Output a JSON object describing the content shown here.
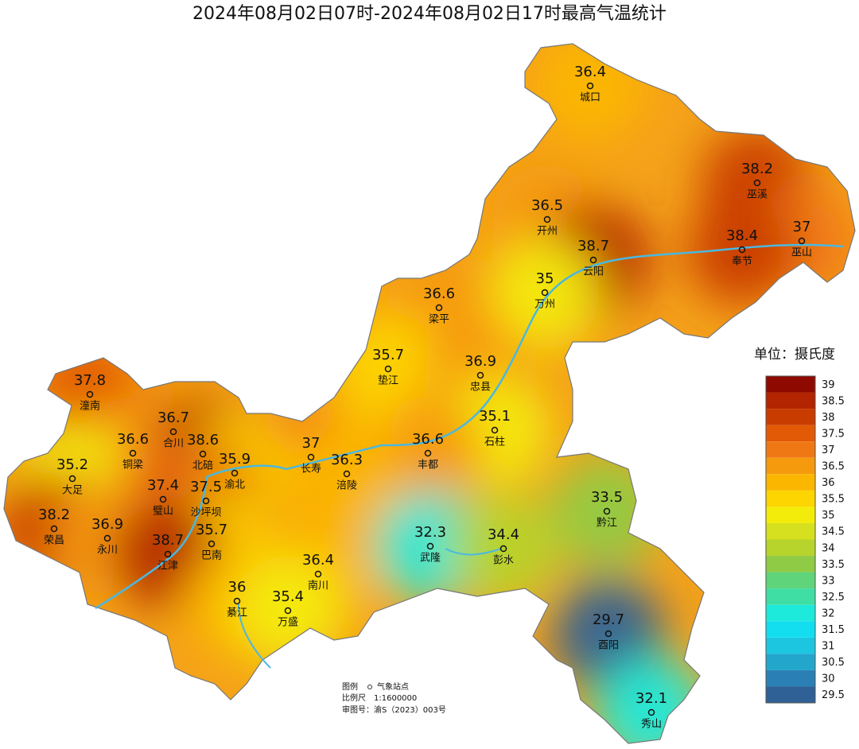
{
  "title": "2024年08月02日07时-2024年08月02日17时最高气温统计",
  "stations": [
    {
      "name": "城口",
      "value": 36.4
    },
    {
      "name": "巫溪",
      "value": 38.2
    },
    {
      "name": "开州",
      "value": 36.5
    },
    {
      "name": "巫山",
      "value": 37
    },
    {
      "name": "奉节",
      "value": 38.4
    },
    {
      "name": "云阳",
      "value": 38.7
    },
    {
      "name": "万州",
      "value": 35
    },
    {
      "name": "梁平",
      "value": 36.6
    },
    {
      "name": "垫江",
      "value": 35.7
    },
    {
      "name": "忠县",
      "value": 36.9
    },
    {
      "name": "潼南",
      "value": 37.8
    },
    {
      "name": "石柱",
      "value": 35.1
    },
    {
      "name": "合川",
      "value": 36.7
    },
    {
      "name": "铜梁",
      "value": 36.6
    },
    {
      "name": "北碚",
      "value": 38.6
    },
    {
      "name": "丰都",
      "value": 36.6
    },
    {
      "name": "长寿",
      "value": 37
    },
    {
      "name": "渝北",
      "value": 35.9
    },
    {
      "name": "涪陵",
      "value": 36.3
    },
    {
      "name": "大足",
      "value": 35.2
    },
    {
      "name": "璧山",
      "value": 37.4
    },
    {
      "name": "沙坪坝",
      "value": 37.5
    },
    {
      "name": "黔江",
      "value": 33.5
    },
    {
      "name": "荣昌",
      "value": 38.2
    },
    {
      "name": "永川",
      "value": 36.9
    },
    {
      "name": "武隆",
      "value": 32.3
    },
    {
      "name": "彭水",
      "value": 34.4
    },
    {
      "name": "巴南",
      "value": 35.7
    },
    {
      "name": "江津",
      "value": 38.7
    },
    {
      "name": "南川",
      "value": 36.4
    },
    {
      "name": "綦江",
      "value": 36
    },
    {
      "name": "万盛",
      "value": 35.4
    },
    {
      "name": "酉阳",
      "value": 29.7
    },
    {
      "name": "秀山",
      "value": 32.1
    }
  ],
  "legend": {
    "unit": "单位：摄氏度",
    "items": [
      {
        "value": 39,
        "color": "#8e0a00"
      },
      {
        "value": 38.5,
        "color": "#b32400"
      },
      {
        "value": 38,
        "color": "#c93c00"
      },
      {
        "value": 37.5,
        "color": "#e25a06"
      },
      {
        "value": 37,
        "color": "#f07814"
      },
      {
        "value": 36.5,
        "color": "#f59a0c"
      },
      {
        "value": 36,
        "color": "#fbb600"
      },
      {
        "value": 35.5,
        "color": "#fdd500"
      },
      {
        "value": 35,
        "color": "#f3ec0a"
      },
      {
        "value": 34.5,
        "color": "#d6e01e"
      },
      {
        "value": 34,
        "color": "#b6d42c"
      },
      {
        "value": 33.5,
        "color": "#8fcb44"
      },
      {
        "value": 33,
        "color": "#5fd47a"
      },
      {
        "value": 32.5,
        "color": "#3fdea4"
      },
      {
        "value": 32,
        "color": "#1eeadc"
      },
      {
        "value": 31.5,
        "color": "#12def0"
      },
      {
        "value": 31,
        "color": "#1cc6e0"
      },
      {
        "value": 30.5,
        "color": "#22a6cc"
      },
      {
        "value": 30,
        "color": "#2a80b4"
      },
      {
        "value": 29.5,
        "color": "#306196"
      }
    ]
  },
  "footer": {
    "legend_label": "图例",
    "station_label": "气象站点",
    "scale_label": "比例尺",
    "scale": "1:1600000",
    "approval": "审图号：渝S（2023）003号"
  }
}
